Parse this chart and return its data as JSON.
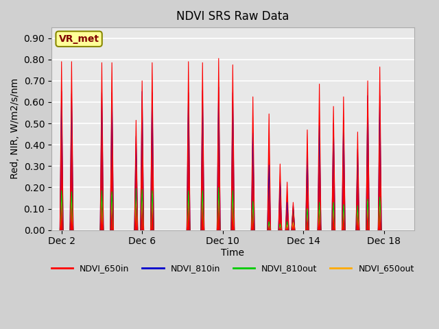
{
  "title": "NDVI SRS Raw Data",
  "xlabel": "Time",
  "ylabel": "Red, NIR, W/m2/s/nm",
  "ylim": [
    0.0,
    0.95
  ],
  "yticks": [
    0.0,
    0.1,
    0.2,
    0.3,
    0.4,
    0.5,
    0.6,
    0.7,
    0.8,
    0.9
  ],
  "background_color": "#d0d0d0",
  "plot_bg_color": "#e8e8e8",
  "colors": {
    "NDVI_650in": "#ff0000",
    "NDVI_810in": "#0000cc",
    "NDVI_810out": "#00cc00",
    "NDVI_650out": "#ffaa00"
  },
  "vr_met_label": "VR_met",
  "vr_met_text_color": "#800000",
  "vr_met_bg_color": "#ffff99",
  "vr_met_border_color": "#888800",
  "spike_groups": [
    {
      "day": 2.0,
      "r650in": 0.79,
      "r810in": 0.65,
      "r810out": 0.185,
      "r650out": 0.165
    },
    {
      "day": 2.5,
      "r650in": 0.79,
      "r810in": 0.64,
      "r810out": 0.18,
      "r650out": 0.16
    },
    {
      "day": 4.0,
      "r650in": 0.785,
      "r810in": 0.645,
      "r810out": 0.185,
      "r650out": 0.17
    },
    {
      "day": 4.5,
      "r650in": 0.785,
      "r810in": 0.645,
      "r810out": 0.18,
      "r650out": 0.165
    },
    {
      "day": 5.7,
      "r650in": 0.515,
      "r810in": 0.44,
      "r810out": 0.195,
      "r650out": 0.155
    },
    {
      "day": 6.0,
      "r650in": 0.7,
      "r810in": 0.65,
      "r810out": 0.19,
      "r650out": 0.165
    },
    {
      "day": 6.5,
      "r650in": 0.785,
      "r810in": 0.645,
      "r810out": 0.185,
      "r650out": 0.17
    },
    {
      "day": 8.3,
      "r650in": 0.79,
      "r810in": 0.645,
      "r810out": 0.185,
      "r650out": 0.165
    },
    {
      "day": 9.0,
      "r650in": 0.785,
      "r810in": 0.655,
      "r810out": 0.185,
      "r650out": 0.17
    },
    {
      "day": 9.8,
      "r650in": 0.805,
      "r810in": 0.67,
      "r810out": 0.2,
      "r650out": 0.175
    },
    {
      "day": 10.5,
      "r650in": 0.775,
      "r810in": 0.645,
      "r810out": 0.185,
      "r650out": 0.165
    },
    {
      "day": 11.5,
      "r650in": 0.625,
      "r810in": 0.455,
      "r810out": 0.135,
      "r650out": 0.13
    },
    {
      "day": 12.3,
      "r650in": 0.545,
      "r810in": 0.305,
      "r810out": 0.04,
      "r650out": 0.035
    },
    {
      "day": 12.85,
      "r650in": 0.31,
      "r810in": 0.225,
      "r810out": 0.03,
      "r650out": 0.025
    },
    {
      "day": 13.2,
      "r650in": 0.225,
      "r810in": 0.13,
      "r810out": 0.04,
      "r650out": 0.025
    },
    {
      "day": 13.5,
      "r650in": 0.13,
      "r810in": 0.115,
      "r810out": 0.105,
      "r650out": 0.035
    },
    {
      "day": 14.2,
      "r650in": 0.47,
      "r810in": 0.36,
      "r810out": 0.1,
      "r650out": 0.1
    },
    {
      "day": 14.8,
      "r650in": 0.685,
      "r810in": 0.49,
      "r810out": 0.13,
      "r650out": 0.115
    },
    {
      "day": 15.5,
      "r650in": 0.58,
      "r810in": 0.5,
      "r810out": 0.13,
      "r650out": 0.115
    },
    {
      "day": 16.0,
      "r650in": 0.625,
      "r810in": 0.515,
      "r810out": 0.12,
      "r650out": 0.11
    },
    {
      "day": 16.7,
      "r650in": 0.46,
      "r810in": 0.38,
      "r810out": 0.115,
      "r650out": 0.105
    },
    {
      "day": 17.2,
      "r650in": 0.7,
      "r810in": 0.63,
      "r810out": 0.145,
      "r650out": 0.135
    },
    {
      "day": 17.8,
      "r650in": 0.765,
      "r810in": 0.63,
      "r810out": 0.155,
      "r650out": 0.135
    }
  ],
  "xtick_positions": [
    2,
    6,
    10,
    14,
    18
  ],
  "xtick_labels": [
    "Dec 2",
    "Dec 6",
    "Dec 10",
    "Dec 14",
    "Dec 18"
  ],
  "xmin": 1.5,
  "xmax": 19.5
}
